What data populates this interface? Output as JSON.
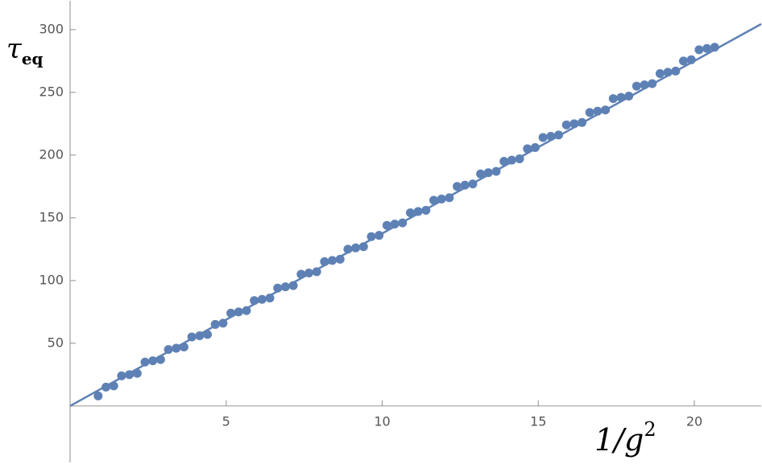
{
  "chart_data": {
    "type": "scatter",
    "x_label": "1/g",
    "x_label_sup": "2",
    "y_label": "τ",
    "y_label_sub": "eq",
    "color": "#5e81b5",
    "x": [
      0.9,
      1.15,
      1.4,
      1.65,
      1.9,
      2.15,
      2.4,
      2.65,
      2.9,
      3.15,
      3.4,
      3.65,
      3.9,
      4.15,
      4.4,
      4.65,
      4.9,
      5.15,
      5.4,
      5.65,
      5.9,
      6.15,
      6.4,
      6.65,
      6.9,
      7.15,
      7.4,
      7.65,
      7.9,
      8.15,
      8.4,
      8.65,
      8.9,
      9.15,
      9.4,
      9.65,
      9.9,
      10.15,
      10.4,
      10.65,
      10.9,
      11.15,
      11.4,
      11.65,
      11.9,
      12.15,
      12.4,
      12.65,
      12.9,
      13.15,
      13.4,
      13.65,
      13.9,
      14.15,
      14.4,
      14.65,
      14.9,
      15.15,
      15.4,
      15.65,
      15.9,
      16.15,
      16.4,
      16.65,
      16.9,
      17.15,
      17.4,
      17.65,
      17.9,
      18.15,
      18.4,
      18.65,
      18.9,
      19.15,
      19.4,
      19.65,
      19.9,
      20.15,
      20.4,
      20.65
    ],
    "values": [
      8,
      15,
      16,
      24,
      25,
      26,
      35,
      36,
      37,
      45,
      46,
      47,
      55,
      56,
      57,
      65,
      66,
      74,
      75,
      76,
      84,
      85,
      86,
      94,
      95,
      96,
      105,
      106,
      107,
      115,
      116,
      117,
      125,
      126,
      127,
      135,
      136,
      144,
      145,
      146,
      154,
      155,
      156,
      164,
      165,
      166,
      175,
      176,
      177,
      185,
      186,
      187,
      195,
      196,
      197,
      205,
      206,
      214,
      215,
      216,
      224,
      225,
      226,
      234,
      235,
      236,
      245,
      246,
      247,
      255,
      256,
      257,
      265,
      266,
      267,
      275,
      276,
      284,
      285,
      286
    ],
    "fit": {
      "x": [
        0,
        22.14
      ],
      "values": [
        0,
        304.5
      ]
    },
    "xlim": [
      0,
      22.14
    ],
    "ylim": [
      -45,
      323
    ],
    "xticks": [
      5,
      10,
      15,
      20
    ],
    "yticks": [
      50,
      100,
      150,
      200,
      250,
      300
    ]
  }
}
